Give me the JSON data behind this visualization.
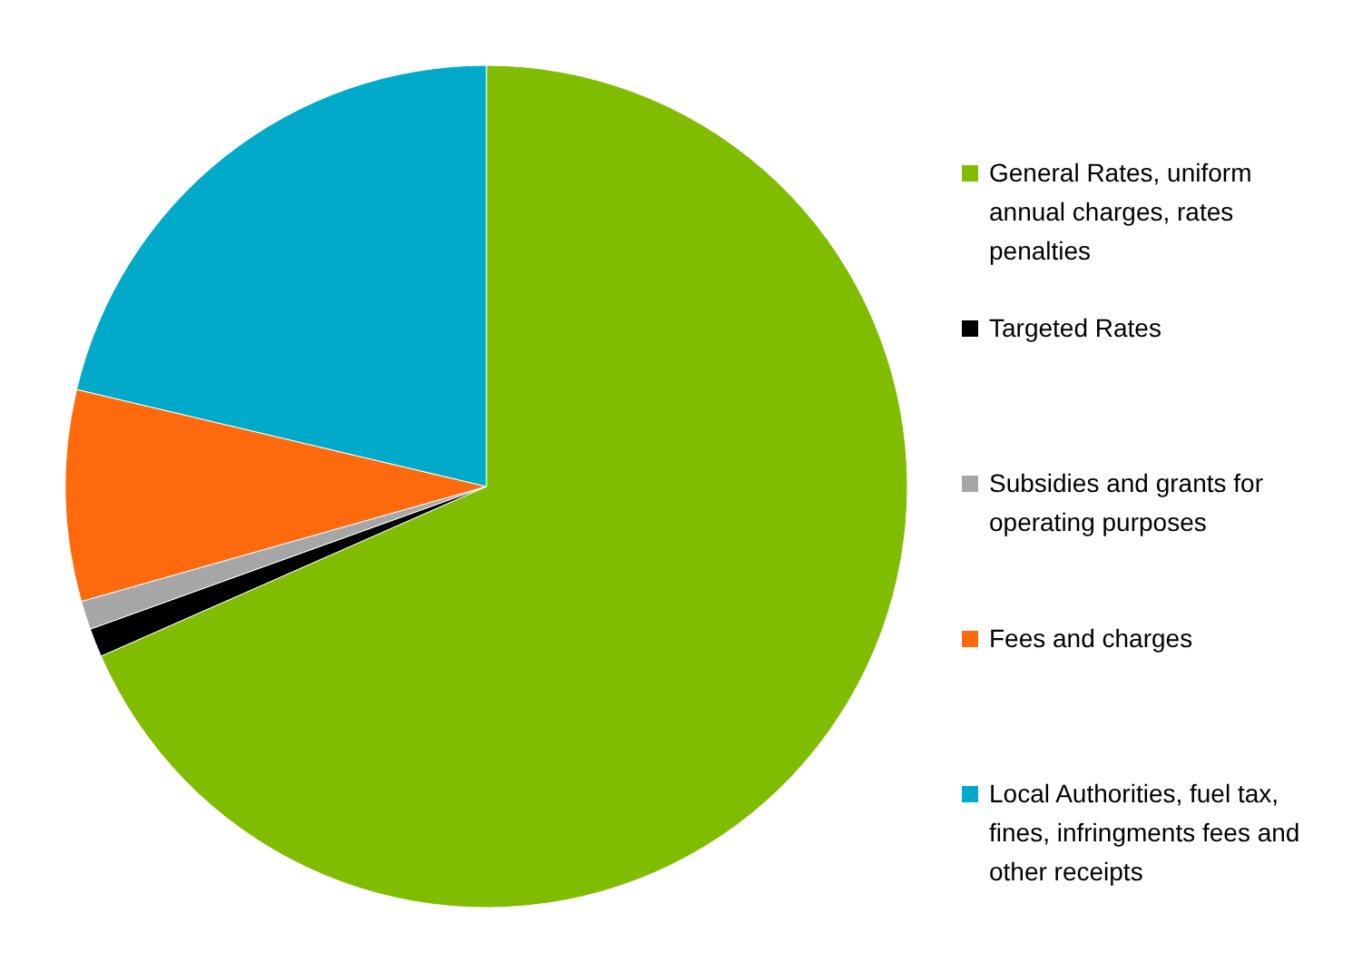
{
  "chart_data": {
    "type": "pie",
    "categories": [
      "General Rates, uniform annual charges, rates penalties",
      "Targeted Rates",
      "Subsidies and grants for operating purposes",
      "Fees and charges",
      "Local Authorities, fuel tax, fines, infringments fees and other receipts"
    ],
    "values": [
      68.4,
      1.1,
      1.1,
      8.1,
      21.3
    ],
    "colors": [
      "#80bc00",
      "#000000",
      "#a6a6a6",
      "#ff6a0f",
      "#00aac8"
    ],
    "legend": "right"
  }
}
